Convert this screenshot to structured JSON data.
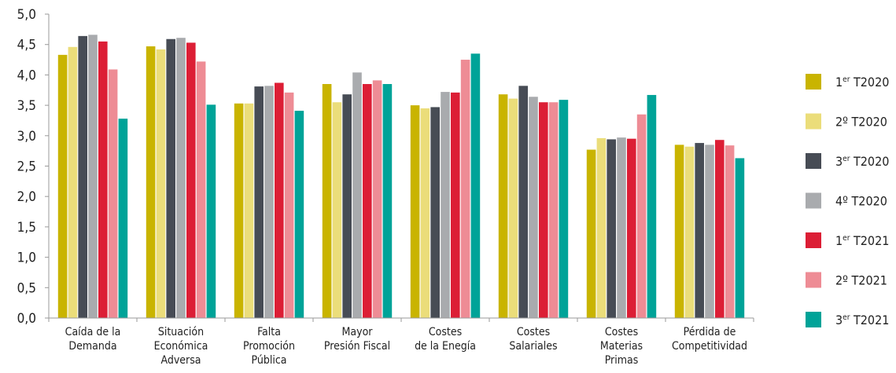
{
  "chart_data": {
    "type": "bar",
    "categories": [
      [
        "Caída de la",
        "Demanda"
      ],
      [
        "Situación",
        "Económica",
        "Adversa"
      ],
      [
        "Falta",
        "Promoción",
        "Pública"
      ],
      [
        "Mayor",
        "Presión Fiscal"
      ],
      [
        "Costes",
        "de la Enegía"
      ],
      [
        "Costes",
        "Salariales"
      ],
      [
        "Costes",
        "Materias",
        "Primas"
      ],
      [
        "Pérdida de",
        "Competitividad"
      ]
    ],
    "series": [
      {
        "name": "1er T2020",
        "name_base": "1",
        "name_sup": "er",
        "name_rest": " T2020",
        "color": "#C9B400",
        "values": [
          4.33,
          4.47,
          3.53,
          3.85,
          3.5,
          3.68,
          2.77,
          2.85
        ]
      },
      {
        "name": "2º T2020",
        "name_base": "2º",
        "name_sup": "",
        "name_rest": " T2020",
        "color": "#EBDD7A",
        "values": [
          4.46,
          4.42,
          3.53,
          3.55,
          3.45,
          3.61,
          2.96,
          2.82
        ]
      },
      {
        "name": "3er T2020",
        "name_base": "3",
        "name_sup": "er",
        "name_rest": " T2020",
        "color": "#474C55",
        "values": [
          4.64,
          4.59,
          3.81,
          3.68,
          3.47,
          3.82,
          2.94,
          2.88
        ]
      },
      {
        "name": "4º T2020",
        "name_base": "4º",
        "name_sup": "",
        "name_rest": " T2020",
        "color": "#A9ABAE",
        "values": [
          4.66,
          4.61,
          3.82,
          4.04,
          3.72,
          3.64,
          2.97,
          2.85
        ]
      },
      {
        "name": "1er T2021",
        "name_base": "1",
        "name_sup": "er",
        "name_rest": " T2021",
        "color": "#DC1E35",
        "values": [
          4.55,
          4.53,
          3.87,
          3.85,
          3.71,
          3.55,
          2.95,
          2.93
        ]
      },
      {
        "name": "2º T2021",
        "name_base": "2º",
        "name_sup": "",
        "name_rest": " T2021",
        "color": "#EE8C95",
        "values": [
          4.09,
          4.22,
          3.71,
          3.91,
          4.25,
          3.55,
          3.35,
          2.84
        ]
      },
      {
        "name": "3er T2021",
        "name_base": "3",
        "name_sup": "er",
        "name_rest": " T2021",
        "color": "#00A398",
        "values": [
          3.28,
          3.51,
          3.41,
          3.85,
          4.35,
          3.59,
          3.67,
          2.63
        ]
      }
    ],
    "y_ticks": [
      "0,0",
      "0,5",
      "1,0",
      "1,5",
      "2,0",
      "2,5",
      "3,0",
      "3,5",
      "4,0",
      "4,5",
      "5,0"
    ],
    "ylim": [
      0,
      5
    ],
    "grid": false,
    "legend_position": "right"
  }
}
